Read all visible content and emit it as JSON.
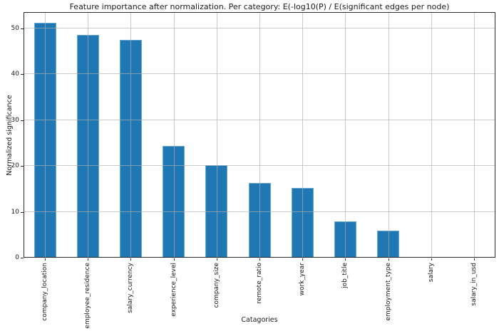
{
  "chart_data": {
    "type": "bar",
    "title": "Feature importance after normalization. Per category: E(-log10(P) / E(significant edges per node)",
    "xlabel": "Catagories",
    "ylabel": "Normalized significance",
    "categories": [
      "company_location",
      "employee_residence",
      "salary_currency",
      "experience_level",
      "company_size",
      "remote_ratio",
      "work_year",
      "job_title",
      "employment_type",
      "salary",
      "salary_in_usd"
    ],
    "values": [
      51.0,
      48.4,
      47.3,
      24.2,
      20.1,
      16.2,
      15.1,
      7.8,
      5.8,
      0.0,
      0.0
    ],
    "yticks": [
      0,
      10,
      20,
      30,
      40,
      50
    ],
    "ylim": [
      0,
      53.55
    ],
    "grid": true,
    "legend": "none",
    "bar_color": "#1f77b4",
    "bar_edge_color": "#69aad2",
    "grid_color": "#b0b0b0",
    "spine_color": "#2b2b2b",
    "background_color": "#ffffff"
  }
}
